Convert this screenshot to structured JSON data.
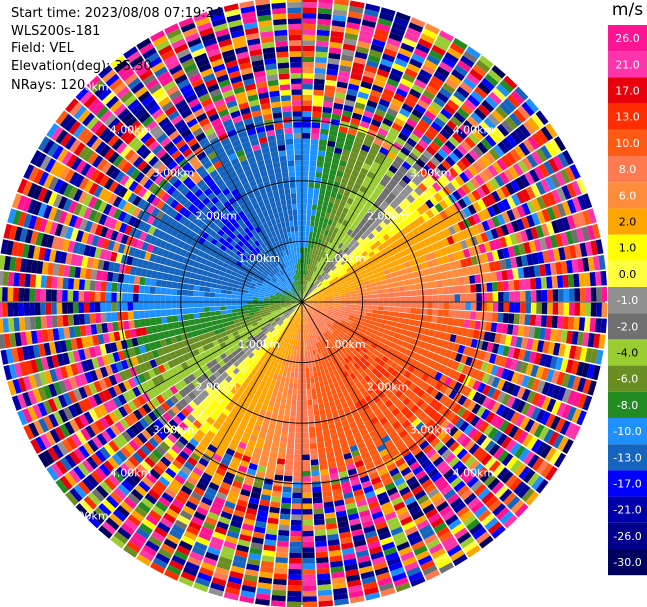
{
  "info": {
    "start_time": "Start time: 2023/08/08 07:19:24",
    "instrument": "WLS200s-181",
    "field": "Field: VEL",
    "elevation": "Elevation(deg): 35.30",
    "nrays": "NRays: 120"
  },
  "chart_data": {
    "type": "heatmap",
    "projection": "polar-ppi",
    "title": "",
    "field": "VEL",
    "nrays": 120,
    "elevation_deg": 35.3,
    "max_range_km": 5.0,
    "range_rings_km": [
      1.0,
      2.0,
      3.0
    ],
    "range_labels": [
      {
        "text": "1.00km",
        "range": 1.0,
        "azimuth": 315
      },
      {
        "text": "2.00km",
        "range": 2.0,
        "azimuth": 315
      },
      {
        "text": "3.00km",
        "range": 3.0,
        "azimuth": 315
      },
      {
        "text": "4.00km",
        "range": 4.0,
        "azimuth": 315
      },
      {
        "text": "5.00km",
        "range": 5.0,
        "azimuth": 315
      },
      {
        "text": "1.00km",
        "range": 1.0,
        "azimuth": 45
      },
      {
        "text": "2.00km",
        "range": 2.0,
        "azimuth": 45
      },
      {
        "text": "3.00km",
        "range": 3.0,
        "azimuth": 45
      },
      {
        "text": "4.00km",
        "range": 4.0,
        "azimuth": 45
      },
      {
        "text": "1.00km",
        "range": 1.0,
        "azimuth": 225
      },
      {
        "text": "2.00km",
        "range": 2.0,
        "azimuth": 225
      },
      {
        "text": "3.00km",
        "range": 3.0,
        "azimuth": 225
      },
      {
        "text": "4.00km",
        "range": 4.0,
        "azimuth": 225
      },
      {
        "text": "5.00km",
        "range": 5.0,
        "azimuth": 225
      },
      {
        "text": "1.00km",
        "range": 1.0,
        "azimuth": 135
      },
      {
        "text": "2.00km",
        "range": 2.0,
        "azimuth": 135
      },
      {
        "text": "3.00km",
        "range": 3.0,
        "azimuth": 135
      },
      {
        "text": "4.00km",
        "range": 4.0,
        "azimuth": 135
      }
    ],
    "velocity_field": {
      "description_units": "m/s",
      "near_range_km": [
        0.0,
        2.3
      ],
      "noise_start_km": 3.0,
      "pattern": "dipole: inbound (negative, blue/green) to the north-west, outbound (positive, red/orange/yellow) to the south-east, zero line oriented NE-SW",
      "peak_negative": -10.0,
      "peak_positive": 13.0
    },
    "colorbar": {
      "unit": "m/s",
      "ticks": [
        "26.0",
        "21.0",
        "17.0",
        "13.0",
        "10.0",
        "8.0",
        "6.0",
        "2.0",
        "1.0",
        "0.0",
        "-1.0",
        "-2.0",
        "-4.0",
        "-6.0",
        "-8.0",
        "-10.0",
        "-13.0",
        "-17.0",
        "-21.0",
        "-26.0",
        "-30.0"
      ],
      "colors": [
        "#ff1493",
        "#ff33aa",
        "#e8000b",
        "#ff2d00",
        "#ff5a14",
        "#ff7a50",
        "#ff8c3a",
        "#ffa500",
        "#ffff00",
        "#ffff40",
        "#909090",
        "#707070",
        "#9acd32",
        "#6b8e23",
        "#228b22",
        "#1e90ff",
        "#1565c0",
        "#0000ff",
        "#0000aa",
        "#00008b",
        "#000060"
      ]
    }
  }
}
